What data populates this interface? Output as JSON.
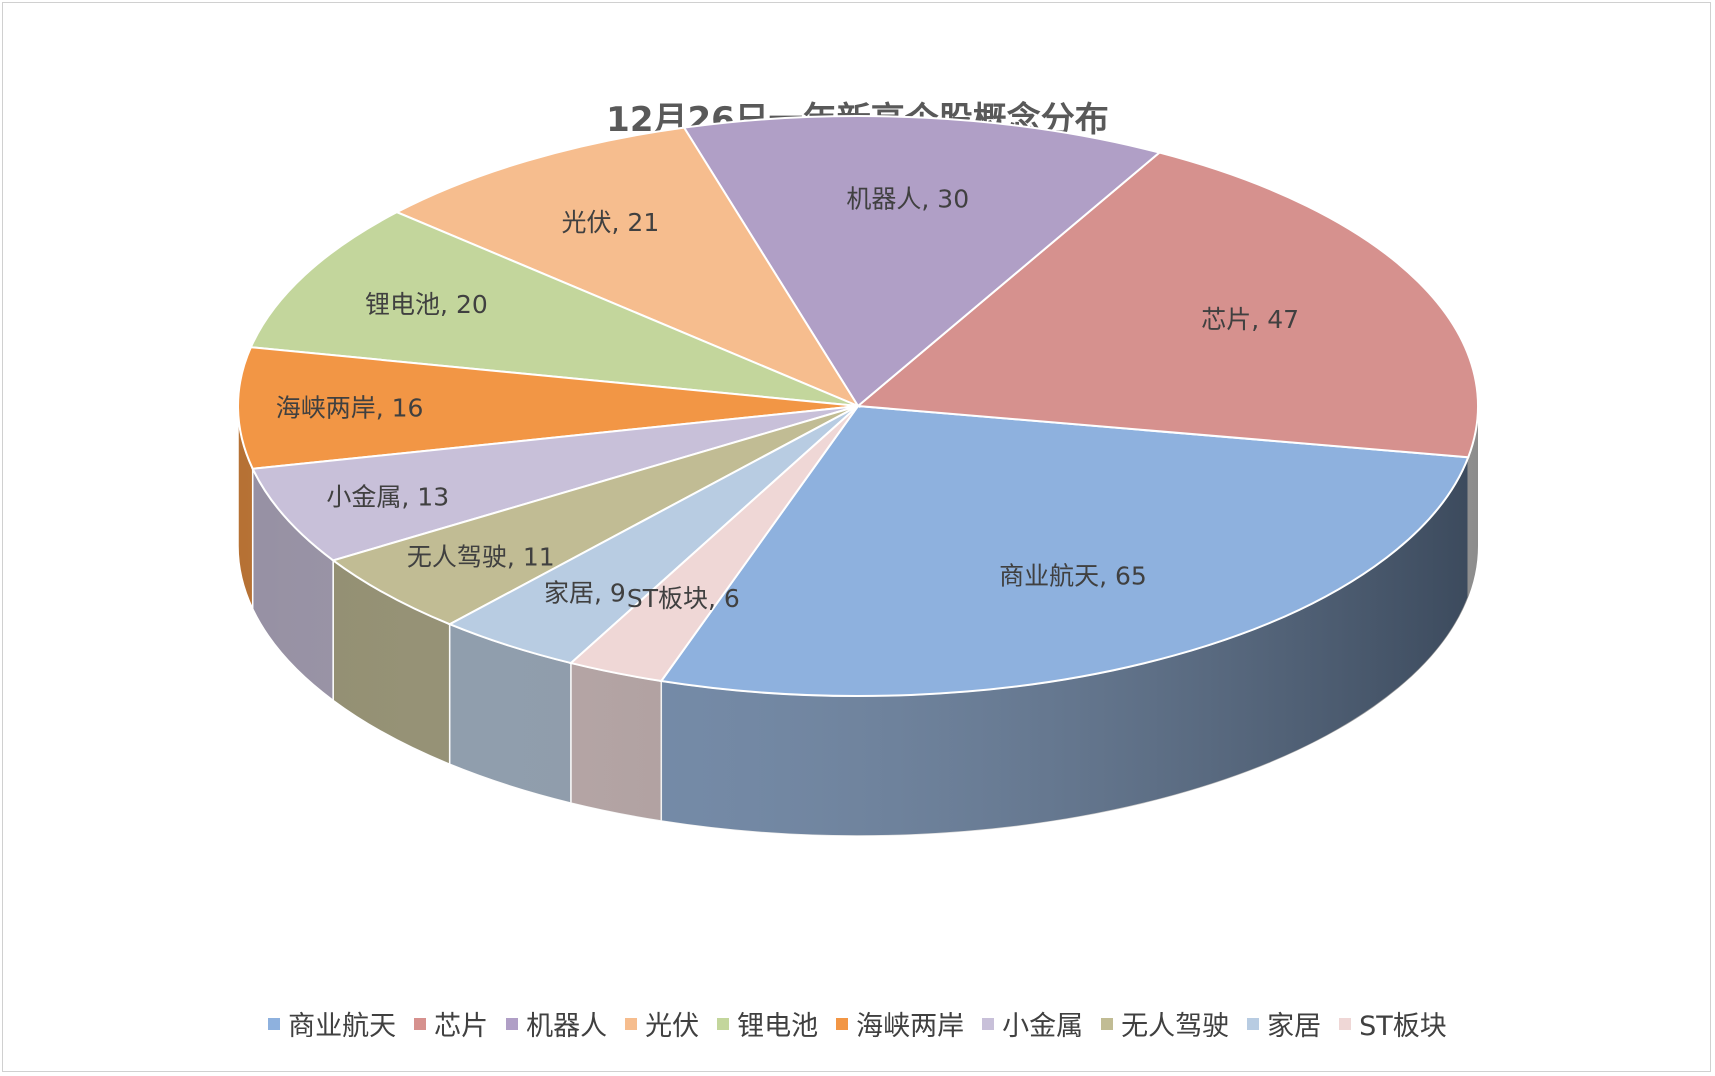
{
  "chart_data": {
    "type": "pie",
    "title": "12月26日一年新高个股概念分布",
    "legend_position": "bottom",
    "slices": [
      {
        "label": "商业航天",
        "value": 65,
        "color": "#8EB1DE"
      },
      {
        "label": "芯片",
        "value": 47,
        "color": "#D6918E"
      },
      {
        "label": "机器人",
        "value": 30,
        "color": "#B09FC6"
      },
      {
        "label": "光伏",
        "value": 21,
        "color": "#F6BD8E"
      },
      {
        "label": "锂电池",
        "value": 20,
        "color": "#C3D69C"
      },
      {
        "label": "海峡两岸",
        "value": 16,
        "color": "#F29645"
      },
      {
        "label": "小金属",
        "value": 13,
        "color": "#C8C0D9"
      },
      {
        "label": "无人驾驶",
        "value": 11,
        "color": "#C1BC94"
      },
      {
        "label": "家居",
        "value": 9,
        "color": "#B8CCE2"
      },
      {
        "label": "ST板块",
        "value": 6,
        "color": "#EFD7D6"
      }
    ]
  }
}
